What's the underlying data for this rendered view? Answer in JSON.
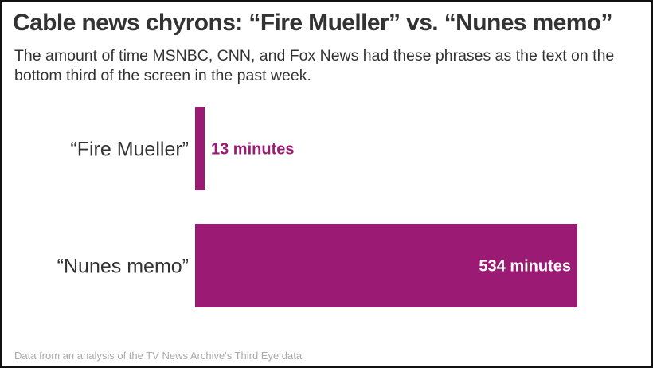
{
  "title": "Cable news chyrons: “Fire Mueller” vs. “Nunes memo”",
  "subtitle": "The amount of time MSNBC, CNN, and Fox News had these phrases as the text on the bottom third of the screen in the past week.",
  "source": "Data from an analysis of the TV News Archive's Third Eye data",
  "colors": {
    "bar": "#9b1b74",
    "category_text": "#333333",
    "label_outside": "#9b1b74",
    "label_inside": "#ffffff"
  },
  "chart_data": {
    "type": "bar",
    "orientation": "horizontal",
    "categories": [
      "“Fire Mueller”",
      "“Nunes memo”"
    ],
    "values": [
      13,
      534
    ],
    "value_labels": [
      "13 minutes",
      "534 minutes"
    ],
    "title": "",
    "xlabel": "",
    "ylabel": "",
    "grid": false,
    "legend": "none"
  }
}
